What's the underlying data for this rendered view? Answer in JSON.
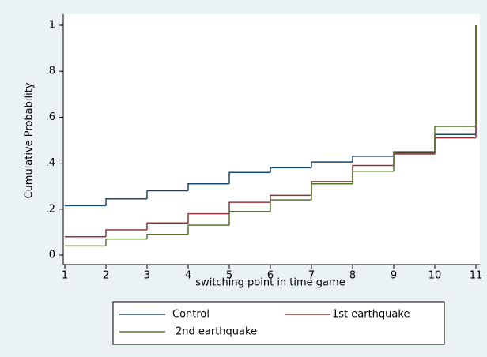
{
  "chart_data": {
    "type": "step",
    "xlabel": "switching point in time game",
    "ylabel": "Cumulative Probability",
    "x": [
      1,
      2,
      3,
      4,
      5,
      6,
      7,
      8,
      9,
      10,
      11
    ],
    "series": [
      {
        "name": "Control",
        "color": "#1a476f",
        "values": [
          0.215,
          0.245,
          0.28,
          0.31,
          0.36,
          0.38,
          0.405,
          0.43,
          0.445,
          0.525,
          1
        ]
      },
      {
        "name": "1st earthquake",
        "color": "#90353b",
        "values": [
          0.08,
          0.11,
          0.14,
          0.18,
          0.23,
          0.26,
          0.32,
          0.39,
          0.44,
          0.51,
          1
        ]
      },
      {
        "name": "2nd earthquake",
        "color": "#55752f",
        "values": [
          0.04,
          0.07,
          0.09,
          0.13,
          0.19,
          0.24,
          0.31,
          0.365,
          0.45,
          0.56,
          1
        ]
      }
    ],
    "xlim": [
      1,
      11
    ],
    "xticks": [
      1,
      2,
      3,
      4,
      5,
      6,
      7,
      8,
      9,
      10,
      11
    ],
    "ylim": [
      0,
      1
    ],
    "yticks": [
      0,
      {
        "value": 0.2,
        "label": ".2"
      },
      {
        "value": 0.4,
        "label": ".4"
      },
      {
        "value": 0.6,
        "label": ".6"
      },
      {
        "value": 0.8,
        "label": ".8"
      },
      1
    ]
  }
}
